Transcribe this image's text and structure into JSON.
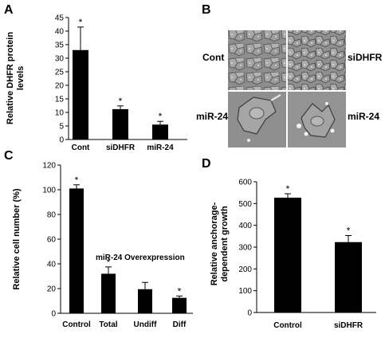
{
  "panels": {
    "a": "A",
    "b": "B",
    "c": "C",
    "d": "D"
  },
  "chart_data": [
    {
      "type": "bar",
      "panel": "A",
      "categories": [
        "Cont",
        "siDHFR",
        "miR-24"
      ],
      "values": [
        33,
        11.2,
        5.5
      ],
      "errors": [
        8.5,
        1.2,
        1.2
      ],
      "significance": [
        "*",
        "*",
        "*"
      ],
      "ylabel_lines": [
        "Relative DHFR protein",
        "levels"
      ],
      "ylim": [
        0,
        45
      ],
      "yticks": [
        0,
        5,
        10,
        15,
        20,
        25,
        30,
        35,
        40,
        45
      ],
      "color": "#000000"
    },
    {
      "type": "bar",
      "panel": "C",
      "categories": [
        "Control",
        "Total",
        "Undiff",
        "Diff"
      ],
      "values": [
        101,
        32,
        19.5,
        12.5
      ],
      "errors": [
        3,
        5.5,
        5.5,
        1.5
      ],
      "significance": [
        "*",
        "*",
        "",
        "*"
      ],
      "ylabel": "Relative cell number (%)",
      "annotation": "miR-24 Overexpression",
      "ylim": [
        0,
        120
      ],
      "yticks": [
        0,
        20,
        40,
        60,
        80,
        100,
        120
      ],
      "color": "#000000"
    },
    {
      "type": "bar",
      "panel": "D",
      "categories": [
        "Control",
        "siDHFR"
      ],
      "values": [
        527,
        323
      ],
      "errors": [
        18,
        30
      ],
      "significance": [
        "*",
        "*"
      ],
      "ylabel_lines": [
        "Relative anchorage-",
        "dependent growth"
      ],
      "ylim": [
        0,
        600
      ],
      "yticks": [
        0,
        100,
        200,
        300,
        400,
        500,
        600
      ],
      "color": "#000000"
    }
  ],
  "micrographs": {
    "labels": [
      "Cont",
      "siDHFR",
      "miR-24",
      "miR-24"
    ]
  }
}
